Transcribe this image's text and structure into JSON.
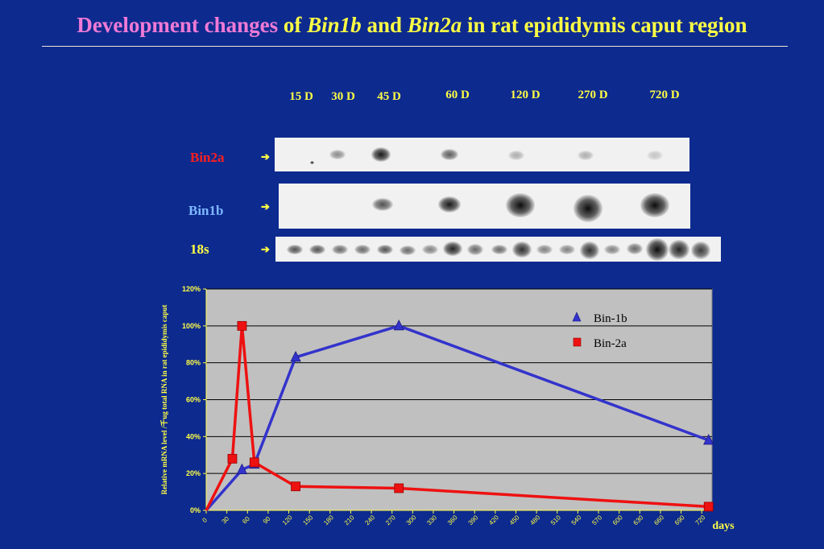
{
  "title": {
    "part1": "Development changes",
    "part2": " of ",
    "part3": "Bin1b",
    "part4": " and ",
    "part5": "Bin2a",
    "part6": " in rat epididymis caput region"
  },
  "blot": {
    "lanes": [
      "15 D",
      "30 D",
      "45 D",
      "60 D",
      "120 D",
      "270 D",
      "720 D"
    ],
    "rows": [
      {
        "label": "Bin2a",
        "color": "#ff2020"
      },
      {
        "label": "Bin1b",
        "color": "#7db8ff"
      },
      {
        "label": "18s",
        "color": "#ffff44"
      }
    ],
    "arrow": "➔"
  },
  "chart_data": {
    "type": "line",
    "ylabel": "Relative mRNA level /千ug total RNA in rat epididymis caput",
    "xlabel": "days",
    "ylim": [
      0,
      120
    ],
    "yticks": [
      "0%",
      "20%",
      "40%",
      "60%",
      "80%",
      "100%",
      "120%"
    ],
    "xlim": [
      0,
      735
    ],
    "xticks": [
      0,
      30,
      60,
      90,
      120,
      150,
      180,
      210,
      240,
      270,
      300,
      330,
      360,
      390,
      420,
      450,
      480,
      510,
      540,
      570,
      600,
      630,
      660,
      690,
      720
    ],
    "grid": true,
    "legend_position": "top-right",
    "series": [
      {
        "name": "Bin-1b",
        "color": "#3333cc",
        "marker": "triangle",
        "points": [
          [
            0,
            0
          ],
          [
            52,
            22
          ],
          [
            70,
            25
          ],
          [
            130,
            83
          ],
          [
            280,
            100
          ],
          [
            730,
            38
          ]
        ]
      },
      {
        "name": "Bin-2a",
        "color": "#ee1111",
        "marker": "square",
        "points": [
          [
            0,
            0
          ],
          [
            38,
            28
          ],
          [
            52,
            100
          ],
          [
            70,
            26
          ],
          [
            130,
            13
          ],
          [
            280,
            12
          ],
          [
            730,
            2
          ]
        ]
      }
    ]
  },
  "colors": {
    "background": "#0d2a8f",
    "plot_area": "#c0c0c0",
    "label_yellow": "#ffff44",
    "title_pink": "#f07ad6"
  }
}
